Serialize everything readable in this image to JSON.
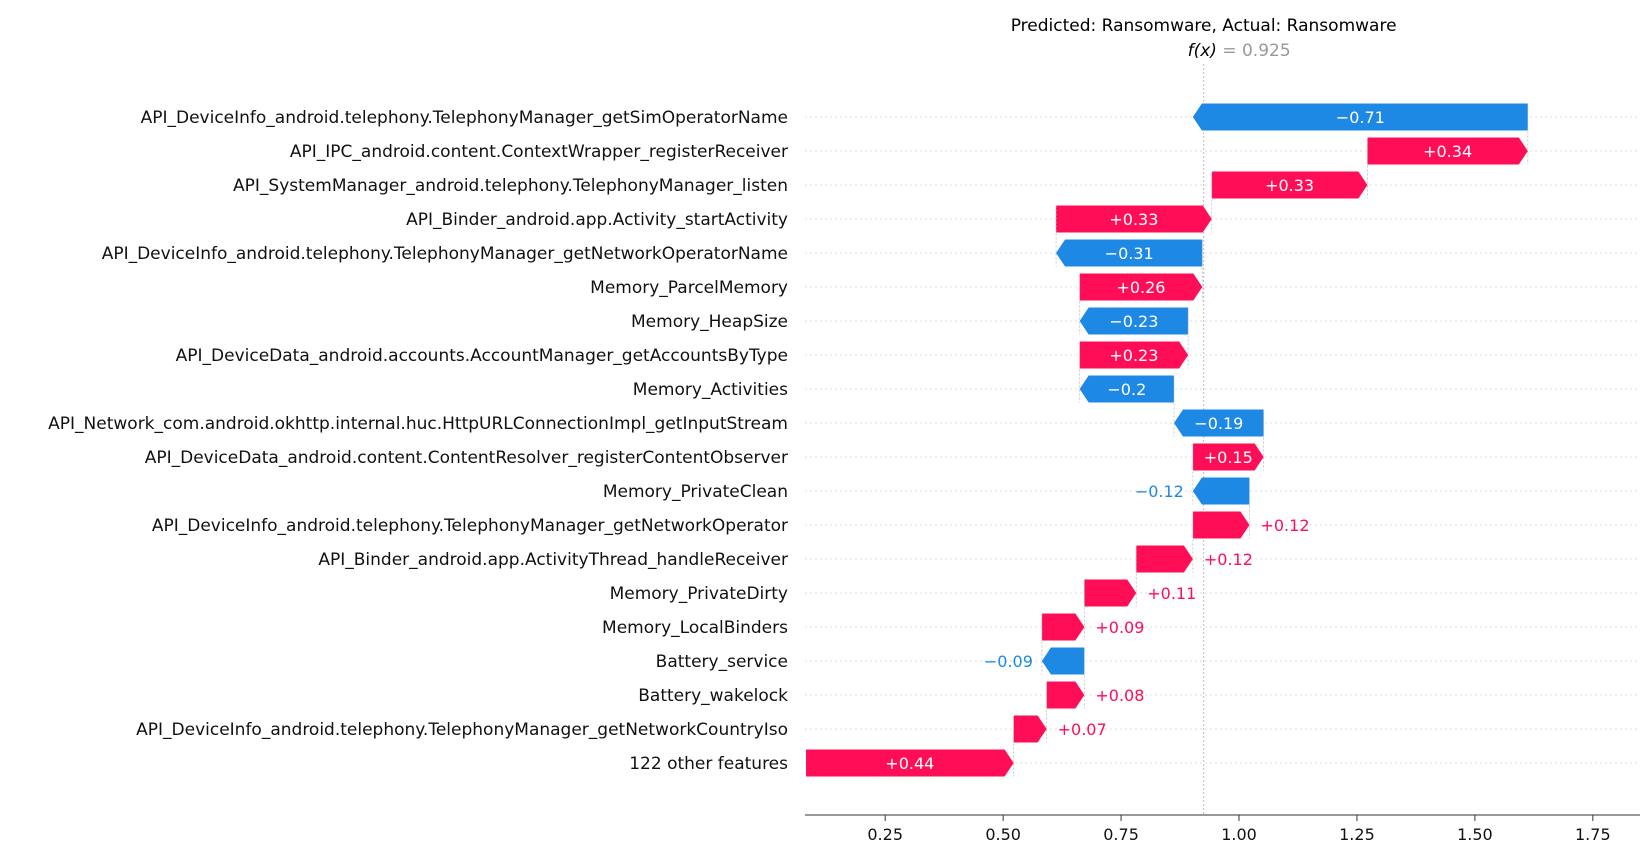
{
  "chart_data": {
    "type": "waterfall",
    "title": "Predicted: Ransomware, Actual: Ransomware",
    "fx_label": "f(x)",
    "fx_equals": " = 0.925",
    "fx_value": 0.925,
    "base_value": 0.0822,
    "xlim": [
      0.08,
      1.85
    ],
    "xticks": [
      0.25,
      0.5,
      0.75,
      1.0,
      1.25,
      1.5,
      1.75
    ],
    "xtick_labels": [
      "0.25",
      "0.50",
      "0.75",
      "1.00",
      "1.25",
      "1.50",
      "1.75"
    ],
    "colors": {
      "positive": "#ff0d57",
      "negative": "#1e88e5",
      "axis": "#333333",
      "grid": "#cccccc"
    },
    "features": [
      {
        "name": "API_DeviceInfo_android.telephony.TelephonyManager_getSimOperatorName",
        "value": -0.71,
        "label": "−0.71"
      },
      {
        "name": "API_IPC_android.content.ContextWrapper_registerReceiver",
        "value": 0.34,
        "label": "+0.34"
      },
      {
        "name": "API_SystemManager_android.telephony.TelephonyManager_listen",
        "value": 0.33,
        "label": "+0.33"
      },
      {
        "name": "API_Binder_android.app.Activity_startActivity",
        "value": 0.33,
        "label": "+0.33"
      },
      {
        "name": "API_DeviceInfo_android.telephony.TelephonyManager_getNetworkOperatorName",
        "value": -0.31,
        "label": "−0.31"
      },
      {
        "name": "Memory_ParcelMemory",
        "value": 0.26,
        "label": "+0.26"
      },
      {
        "name": "Memory_HeapSize",
        "value": -0.23,
        "label": "−0.23"
      },
      {
        "name": "API_DeviceData_android.accounts.AccountManager_getAccountsByType",
        "value": 0.23,
        "label": "+0.23"
      },
      {
        "name": "Memory_Activities",
        "value": -0.2,
        "label": "−0.2"
      },
      {
        "name": "API_Network_com.android.okhttp.internal.huc.HttpURLConnectionImpl_getInputStream",
        "value": -0.19,
        "label": "−0.19"
      },
      {
        "name": "API_DeviceData_android.content.ContentResolver_registerContentObserver",
        "value": 0.15,
        "label": "+0.15"
      },
      {
        "name": "Memory_PrivateClean",
        "value": -0.12,
        "label": "−0.12"
      },
      {
        "name": "API_DeviceInfo_android.telephony.TelephonyManager_getNetworkOperator",
        "value": 0.12,
        "label": "+0.12"
      },
      {
        "name": "API_Binder_android.app.ActivityThread_handleReceiver",
        "value": 0.12,
        "label": "+0.12"
      },
      {
        "name": "Memory_PrivateDirty",
        "value": 0.11,
        "label": "+0.11"
      },
      {
        "name": "Memory_LocalBinders",
        "value": 0.09,
        "label": "+0.09"
      },
      {
        "name": "Battery_service",
        "value": -0.09,
        "label": "−0.09"
      },
      {
        "name": "Battery_wakelock",
        "value": 0.08,
        "label": "+0.08"
      },
      {
        "name": "API_DeviceInfo_android.telephony.TelephonyManager_getNetworkCountryIso",
        "value": 0.07,
        "label": "+0.07"
      },
      {
        "name": "122 other features",
        "value": 0.44,
        "label": "+0.44"
      }
    ]
  }
}
